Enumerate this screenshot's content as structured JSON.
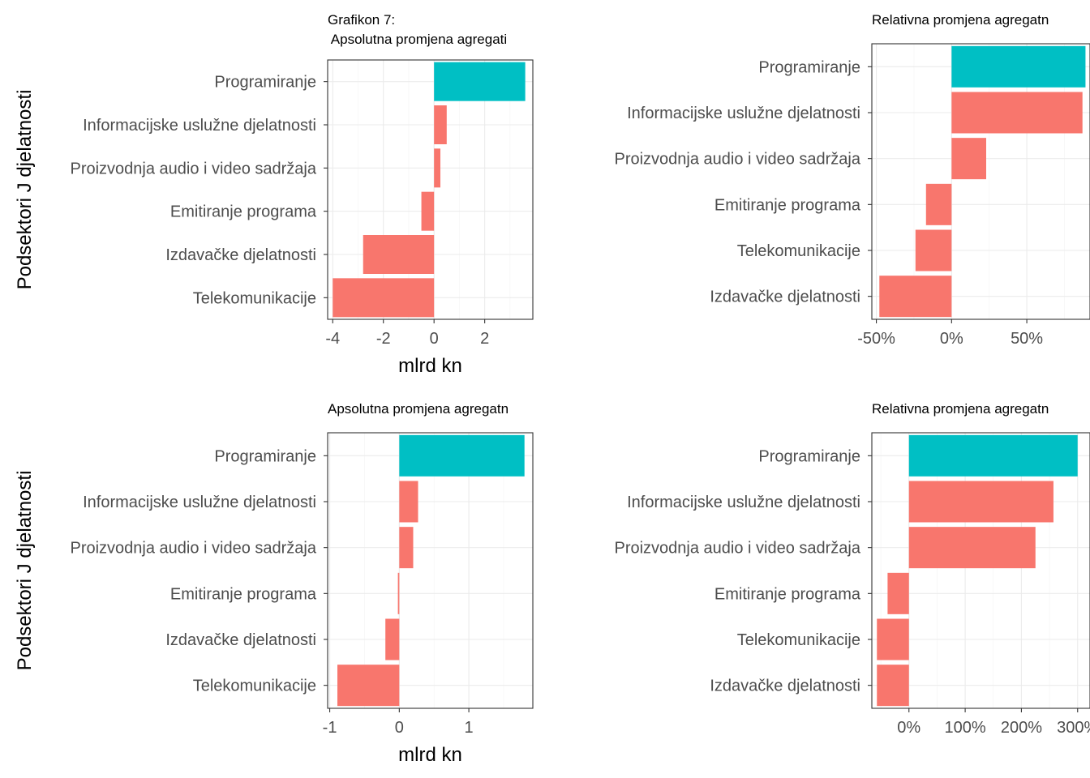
{
  "figure": {
    "y_axis_title": "Podsektori J djelatnosti",
    "colors": {
      "highlight": "#00BFC4",
      "default": "#F8766D"
    }
  },
  "chart_data": [
    {
      "type": "bar",
      "orientation": "horizontal",
      "title": "Grafikon 7:",
      "subtitle": " Apsolutna promjena agregati",
      "xlabel": "mlrd kn",
      "ylabel": "Podsektori J djelatnosti",
      "xlim": [
        -4.2,
        3.9
      ],
      "xticks": [
        -4,
        -2,
        0,
        2
      ],
      "xtick_labels": [
        "-4",
        "-2",
        "0",
        "2"
      ],
      "grid": true,
      "categories": [
        "Programiranje",
        "Informacijske uslužne djelatnosti",
        "Proizvodnja audio i video sadržaja",
        "Emitiranje programa",
        "Izdavačke djelatnosti",
        "Telekomunikacije"
      ],
      "values": [
        3.6,
        0.5,
        0.25,
        -0.5,
        -2.8,
        -4.0
      ],
      "highlight": [
        true,
        false,
        false,
        false,
        false,
        false
      ]
    },
    {
      "type": "bar",
      "orientation": "horizontal",
      "title": "Relativna promjena agregatn",
      "xlabel": "",
      "ylabel": "",
      "xlim": [
        -53,
        92
      ],
      "xticks": [
        -50,
        0,
        50
      ],
      "xtick_labels": [
        "-50%",
        "0%",
        "50%"
      ],
      "grid": true,
      "categories": [
        "Programiranje",
        "Informacijske uslužne djelatnosti",
        "Proizvodnja audio i video sadržaja",
        "Emitiranje programa",
        "Telekomunikacije",
        "Izdavačke djelatnosti"
      ],
      "values": [
        89,
        87,
        23,
        -17,
        -24,
        -48
      ],
      "highlight": [
        true,
        false,
        false,
        false,
        false,
        false
      ]
    },
    {
      "type": "bar",
      "orientation": "horizontal",
      "title": "Apsolutna promjena agregatn",
      "xlabel": "mlrd kn",
      "ylabel": "Podsektori J djelatnosti",
      "xlim": [
        -1.03,
        1.92
      ],
      "xticks": [
        -1,
        0,
        1
      ],
      "xtick_labels": [
        "-1",
        "0",
        "1"
      ],
      "grid": true,
      "categories": [
        "Programiranje",
        "Informacijske uslužne djelatnosti",
        "Proizvodnja audio i video sadržaja",
        "Emitiranje programa",
        "Izdavačke djelatnosti",
        "Telekomunikacije"
      ],
      "values": [
        1.8,
        0.27,
        0.2,
        -0.02,
        -0.2,
        -0.89
      ],
      "highlight": [
        true,
        false,
        false,
        false,
        false,
        false
      ]
    },
    {
      "type": "bar",
      "orientation": "horizontal",
      "title": "Relativna promjena agregatn",
      "xlabel": "",
      "ylabel": "",
      "xlim": [
        -66,
        322
      ],
      "xticks": [
        0,
        100,
        200,
        300
      ],
      "xtick_labels": [
        "0%",
        "100%",
        "200%",
        "300%"
      ],
      "grid": true,
      "categories": [
        "Programiranje",
        "Informacijske uslužne djelatnosti",
        "Proizvodnja audio i video sadržaja",
        "Emitiranje programa",
        "Telekomunikacije",
        "Izdavačke djelatnosti"
      ],
      "values": [
        300,
        257,
        225,
        -38,
        -57,
        -57
      ],
      "highlight": [
        true,
        false,
        false,
        false,
        false,
        false
      ]
    }
  ]
}
